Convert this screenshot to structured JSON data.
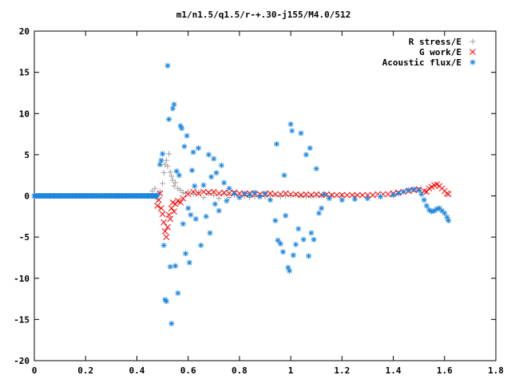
{
  "chart_data": {
    "type": "scatter",
    "title": "m1/n1.5/q1.5/r-+.30-j155/M4.0/512",
    "xlim": [
      0,
      1.8
    ],
    "ylim": [
      -20,
      20
    ],
    "x_ticks": [
      "0",
      "0.2",
      "0.4",
      "0.6",
      "0.8",
      "1",
      "1.2",
      "1.4",
      "1.6",
      "1.8"
    ],
    "y_ticks": [
      "20",
      "15",
      "10",
      "5",
      "0",
      "-5",
      "-10",
      "-15",
      "-20"
    ],
    "legend_position": "top-right",
    "grid": false,
    "series": [
      {
        "name": "R stress/E",
        "marker": "plus",
        "color": "#a0a0a0",
        "points": [
          [
            0.46,
            0.6
          ],
          [
            0.47,
            0.9
          ],
          [
            0.48,
            -0.4
          ],
          [
            0.49,
            0.5
          ],
          [
            0.5,
            1.5
          ],
          [
            0.505,
            2.8
          ],
          [
            0.51,
            3.8
          ],
          [
            0.515,
            4.3
          ],
          [
            0.52,
            3.6
          ],
          [
            0.525,
            5.1
          ],
          [
            0.53,
            2.9
          ],
          [
            0.535,
            2.4
          ],
          [
            0.54,
            1.9
          ],
          [
            0.545,
            1.2
          ],
          [
            0.55,
            1.6
          ],
          [
            0.56,
            0.9
          ],
          [
            0.57,
            0.7
          ],
          [
            0.58,
            0.4
          ],
          [
            0.59,
            0.3
          ],
          [
            0.6,
            0.5
          ],
          [
            0.62,
            0.2
          ],
          [
            0.64,
            0.4
          ],
          [
            0.66,
            -0.2
          ],
          [
            0.68,
            0.3
          ],
          [
            0.7,
            0.1
          ],
          [
            0.72,
            -0.3
          ],
          [
            0.74,
            0.2
          ],
          [
            0.76,
            -0.2
          ],
          [
            0.78,
            0.1
          ],
          [
            0.8,
            -0.1
          ],
          [
            0.82,
            0.0
          ],
          [
            0.84,
            -0.2
          ],
          [
            0.86,
            -0.1
          ],
          [
            0.88,
            0.1
          ],
          [
            0.9,
            -0.1
          ],
          [
            0.92,
            0.0
          ],
          [
            0.94,
            0.1
          ],
          [
            0.96,
            -0.1
          ],
          [
            0.98,
            0.0
          ],
          [
            1.0,
            0.0
          ],
          [
            1.02,
            0.1
          ],
          [
            1.04,
            0.0
          ],
          [
            1.06,
            -0.1
          ],
          [
            1.08,
            0.0
          ],
          [
            1.1,
            0.0
          ],
          [
            1.12,
            0.0
          ],
          [
            1.14,
            0.0
          ],
          [
            1.16,
            0.0
          ],
          [
            1.2,
            0.0
          ],
          [
            1.25,
            0.0
          ]
        ]
      },
      {
        "name": "G work/E",
        "marker": "cross",
        "color": "#ff0000",
        "points": [
          [
            0.48,
            -1.2
          ],
          [
            0.485,
            -0.5
          ],
          [
            0.49,
            0.3
          ],
          [
            0.495,
            -1.5
          ],
          [
            0.5,
            -2.2
          ],
          [
            0.505,
            -3.2
          ],
          [
            0.51,
            -4.3
          ],
          [
            0.515,
            -5.0
          ],
          [
            0.52,
            -3.8
          ],
          [
            0.525,
            -2.3
          ],
          [
            0.53,
            -2.8
          ],
          [
            0.535,
            -1.5
          ],
          [
            0.54,
            -0.8
          ],
          [
            0.545,
            -1.9
          ],
          [
            0.55,
            -1.0
          ],
          [
            0.56,
            -0.6
          ],
          [
            0.57,
            -0.8
          ],
          [
            0.58,
            -0.3
          ],
          [
            0.6,
            0.2
          ],
          [
            0.62,
            0.5
          ],
          [
            0.64,
            0.3
          ],
          [
            0.66,
            0.5
          ],
          [
            0.68,
            0.4
          ],
          [
            0.7,
            0.5
          ],
          [
            0.72,
            0.3
          ],
          [
            0.74,
            0.4
          ],
          [
            0.76,
            0.3
          ],
          [
            0.78,
            0.4
          ],
          [
            0.8,
            0.3
          ],
          [
            0.82,
            0.2
          ],
          [
            0.84,
            0.3
          ],
          [
            0.86,
            0.2
          ],
          [
            0.88,
            0.2
          ],
          [
            0.9,
            0.2
          ],
          [
            0.92,
            0.3
          ],
          [
            0.94,
            0.2
          ],
          [
            0.96,
            0.2
          ],
          [
            0.98,
            0.3
          ],
          [
            1.0,
            0.2
          ],
          [
            1.02,
            0.2
          ],
          [
            1.04,
            0.1
          ],
          [
            1.06,
            0.2
          ],
          [
            1.08,
            0.1
          ],
          [
            1.1,
            0.2
          ],
          [
            1.12,
            0.1
          ],
          [
            1.14,
            0.2
          ],
          [
            1.16,
            0.1
          ],
          [
            1.18,
            0.1
          ],
          [
            1.2,
            0.1
          ],
          [
            1.22,
            0.1
          ],
          [
            1.24,
            0.1
          ],
          [
            1.26,
            0.1
          ],
          [
            1.28,
            0.1
          ],
          [
            1.3,
            0.1
          ],
          [
            1.32,
            0.1
          ],
          [
            1.34,
            0.2
          ],
          [
            1.36,
            0.2
          ],
          [
            1.38,
            0.2
          ],
          [
            1.4,
            0.3
          ],
          [
            1.42,
            0.4
          ],
          [
            1.44,
            0.5
          ],
          [
            1.46,
            0.6
          ],
          [
            1.48,
            0.7
          ],
          [
            1.5,
            0.8
          ],
          [
            1.52,
            0.6
          ],
          [
            1.53,
            0.5
          ],
          [
            1.54,
            0.9
          ],
          [
            1.55,
            1.1
          ],
          [
            1.56,
            1.3
          ],
          [
            1.57,
            1.4
          ],
          [
            1.58,
            1.2
          ],
          [
            1.59,
            0.9
          ],
          [
            1.6,
            0.6
          ],
          [
            1.61,
            0.3
          ],
          [
            1.615,
            0.2
          ]
        ]
      },
      {
        "name": "Acoustic flux/E",
        "marker": "star",
        "color": "#1a86e0",
        "points": [
          [
            0.0,
            0.0
          ],
          [
            0.02,
            0.0
          ],
          [
            0.04,
            0.0
          ],
          [
            0.06,
            0.0
          ],
          [
            0.08,
            0.0
          ],
          [
            0.1,
            0.0
          ],
          [
            0.12,
            0.0
          ],
          [
            0.14,
            0.0
          ],
          [
            0.16,
            0.0
          ],
          [
            0.18,
            0.0
          ],
          [
            0.2,
            0.0
          ],
          [
            0.22,
            0.0
          ],
          [
            0.24,
            0.0
          ],
          [
            0.26,
            0.0
          ],
          [
            0.28,
            0.0
          ],
          [
            0.3,
            0.0
          ],
          [
            0.32,
            0.0
          ],
          [
            0.34,
            0.0
          ],
          [
            0.36,
            0.0
          ],
          [
            0.38,
            0.0
          ],
          [
            0.4,
            0.0
          ],
          [
            0.42,
            0.0
          ],
          [
            0.44,
            0.0
          ],
          [
            0.46,
            0.0
          ],
          [
            0.48,
            0.1
          ],
          [
            0.49,
            3.8
          ],
          [
            0.495,
            4.3
          ],
          [
            0.5,
            5.1
          ],
          [
            0.505,
            -6.0
          ],
          [
            0.51,
            -12.6
          ],
          [
            0.515,
            -12.8
          ],
          [
            0.52,
            15.8
          ],
          [
            0.525,
            9.3
          ],
          [
            0.53,
            -8.6
          ],
          [
            0.535,
            -15.5
          ],
          [
            0.54,
            10.6
          ],
          [
            0.545,
            11.1
          ],
          [
            0.55,
            -8.5
          ],
          [
            0.555,
            3.0
          ],
          [
            0.56,
            -11.8
          ],
          [
            0.565,
            2.5
          ],
          [
            0.57,
            8.5
          ],
          [
            0.575,
            8.2
          ],
          [
            0.58,
            -3.4
          ],
          [
            0.585,
            6.0
          ],
          [
            0.59,
            -7.0
          ],
          [
            0.595,
            7.3
          ],
          [
            0.6,
            -1.5
          ],
          [
            0.605,
            -8.1
          ],
          [
            0.61,
            -2.3
          ],
          [
            0.615,
            3.1
          ],
          [
            0.62,
            5.3
          ],
          [
            0.625,
            1.2
          ],
          [
            0.63,
            -2.8
          ],
          [
            0.64,
            5.8
          ],
          [
            0.65,
            -6.0
          ],
          [
            0.66,
            1.3
          ],
          [
            0.67,
            -2.5
          ],
          [
            0.68,
            5.0
          ],
          [
            0.685,
            -4.5
          ],
          [
            0.69,
            2.3
          ],
          [
            0.7,
            4.5
          ],
          [
            0.705,
            -1.0
          ],
          [
            0.71,
            2.8
          ],
          [
            0.72,
            -1.8
          ],
          [
            0.73,
            3.7
          ],
          [
            0.74,
            1.6
          ],
          [
            0.75,
            -0.6
          ],
          [
            0.76,
            0.9
          ],
          [
            0.78,
            0.3
          ],
          [
            0.8,
            -0.2
          ],
          [
            0.82,
            0.3
          ],
          [
            0.84,
            0.1
          ],
          [
            0.86,
            0.4
          ],
          [
            0.88,
            -0.1
          ],
          [
            0.9,
            0.3
          ],
          [
            0.92,
            -0.5
          ],
          [
            0.94,
            -3.0
          ],
          [
            0.945,
            6.3
          ],
          [
            0.95,
            -5.4
          ],
          [
            0.96,
            -5.8
          ],
          [
            0.97,
            -6.8
          ],
          [
            0.975,
            2.5
          ],
          [
            0.98,
            -2.4
          ],
          [
            0.99,
            -8.7
          ],
          [
            0.995,
            -9.1
          ],
          [
            1.0,
            8.7
          ],
          [
            1.005,
            7.9
          ],
          [
            1.01,
            -7.2
          ],
          [
            1.02,
            -5.9
          ],
          [
            1.03,
            -4.0
          ],
          [
            1.04,
            7.6
          ],
          [
            1.05,
            -5.3
          ],
          [
            1.06,
            5.0
          ],
          [
            1.07,
            -7.3
          ],
          [
            1.075,
            5.8
          ],
          [
            1.08,
            -4.5
          ],
          [
            1.09,
            -5.3
          ],
          [
            1.1,
            3.3
          ],
          [
            1.11,
            -2.1
          ],
          [
            1.12,
            -1.5
          ],
          [
            1.13,
            0.2
          ],
          [
            1.15,
            -0.3
          ],
          [
            1.2,
            -0.5
          ],
          [
            1.25,
            -0.4
          ],
          [
            1.3,
            -0.3
          ],
          [
            1.35,
            -0.1
          ],
          [
            1.4,
            0.1
          ],
          [
            1.42,
            0.3
          ],
          [
            1.44,
            0.5
          ],
          [
            1.46,
            0.7
          ],
          [
            1.48,
            0.8
          ],
          [
            1.5,
            0.7
          ],
          [
            1.51,
            0.2
          ],
          [
            1.52,
            -0.5
          ],
          [
            1.53,
            -1.2
          ],
          [
            1.54,
            -1.7
          ],
          [
            1.55,
            -1.9
          ],
          [
            1.56,
            -1.8
          ],
          [
            1.57,
            -1.6
          ],
          [
            1.58,
            -1.5
          ],
          [
            1.59,
            -1.8
          ],
          [
            1.6,
            -2.1
          ],
          [
            1.61,
            -2.6
          ],
          [
            1.615,
            -3.0
          ]
        ]
      }
    ]
  }
}
